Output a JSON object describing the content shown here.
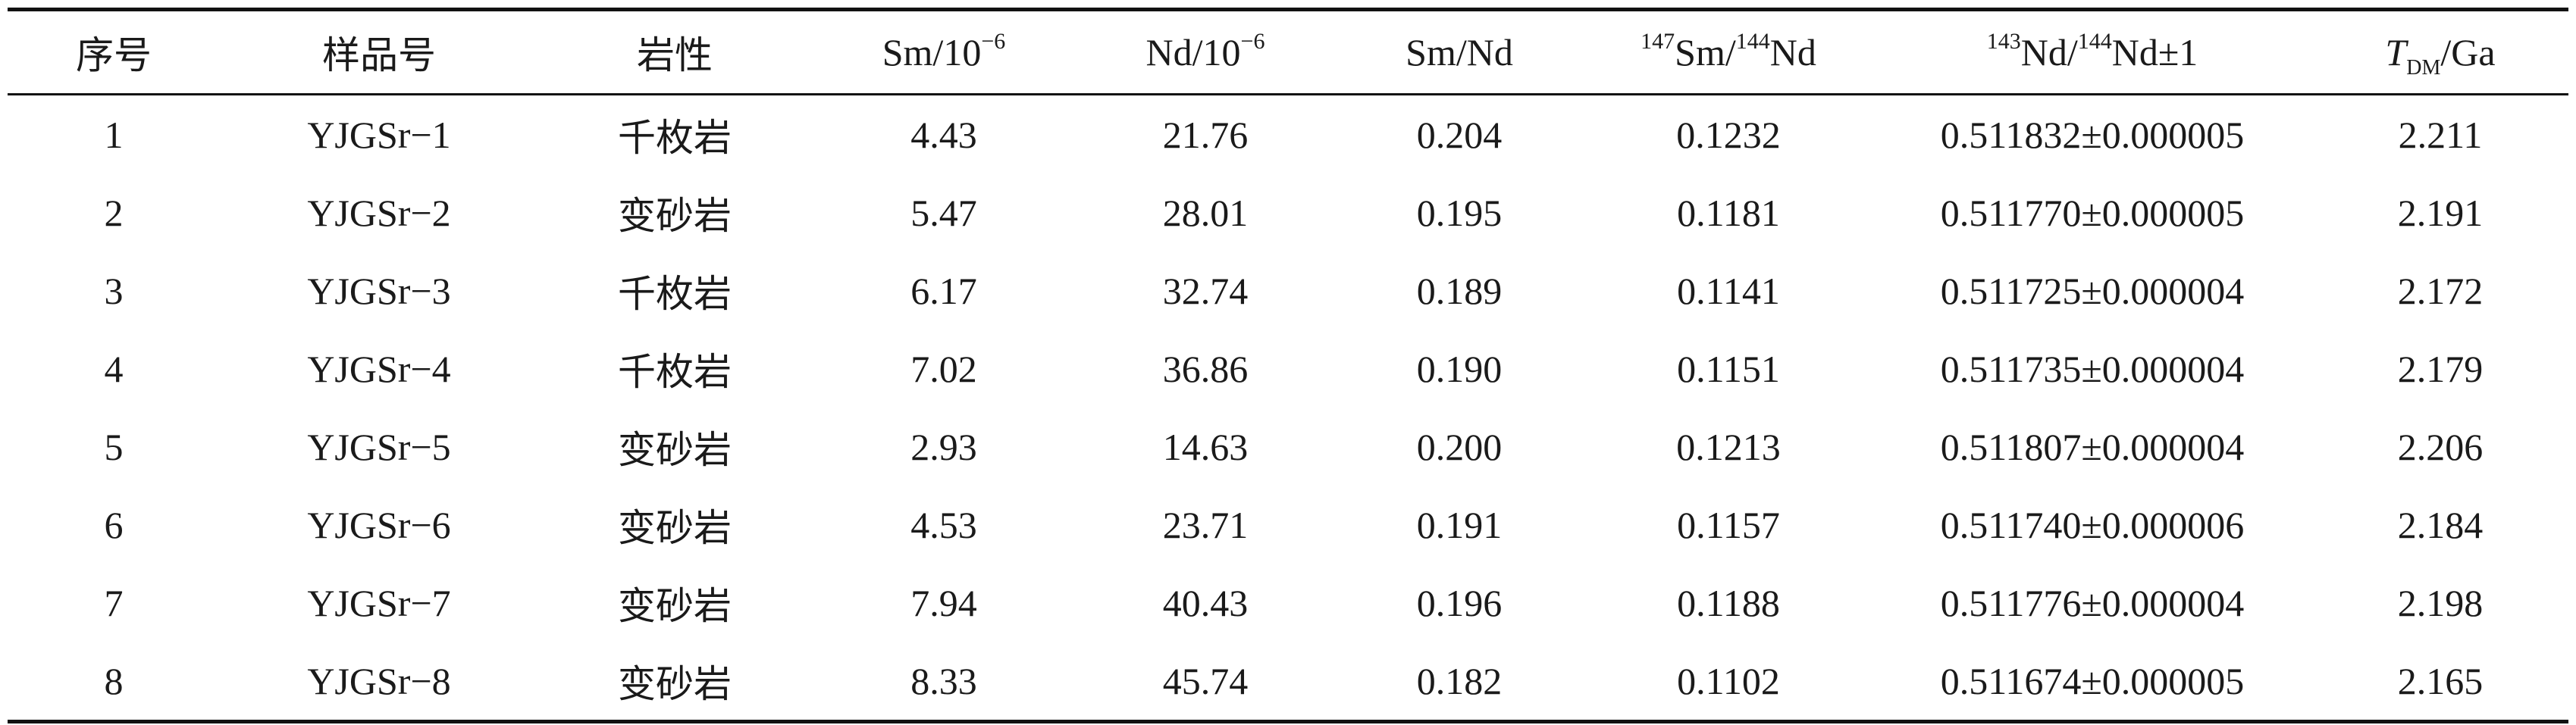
{
  "table": {
    "headers": {
      "index": "序号",
      "sample": "样品号",
      "lithology": "岩性",
      "sm_base": "Sm/10",
      "sm_exp": "−6",
      "nd_base": "Nd/10",
      "nd_exp": "−6",
      "sm_nd": "Sm/Nd",
      "r1_sup1": "147",
      "r1_mid": "Sm/",
      "r1_sup2": "144",
      "r1_end": "Nd",
      "r2_sup1": "143",
      "r2_mid": "Nd/",
      "r2_sup2": "144",
      "r2_end": "Nd±1",
      "tdm_T": "T",
      "tdm_sub": "DM",
      "tdm_unit": "/Ga"
    },
    "rows": [
      {
        "index": "1",
        "sample": "YJGSr−1",
        "lithology": "千枚岩",
        "sm": "4.43",
        "nd": "21.76",
        "sm_nd": "0.204",
        "sm147_nd144": "0.1232",
        "nd143_nd144": "0.511832±0.000005",
        "tdm": "2.211"
      },
      {
        "index": "2",
        "sample": "YJGSr−2",
        "lithology": "变砂岩",
        "sm": "5.47",
        "nd": "28.01",
        "sm_nd": "0.195",
        "sm147_nd144": "0.1181",
        "nd143_nd144": "0.511770±0.000005",
        "tdm": "2.191"
      },
      {
        "index": "3",
        "sample": "YJGSr−3",
        "lithology": "千枚岩",
        "sm": "6.17",
        "nd": "32.74",
        "sm_nd": "0.189",
        "sm147_nd144": "0.1141",
        "nd143_nd144": "0.511725±0.000004",
        "tdm": "2.172"
      },
      {
        "index": "4",
        "sample": "YJGSr−4",
        "lithology": "千枚岩",
        "sm": "7.02",
        "nd": "36.86",
        "sm_nd": "0.190",
        "sm147_nd144": "0.1151",
        "nd143_nd144": "0.511735±0.000004",
        "tdm": "2.179"
      },
      {
        "index": "5",
        "sample": "YJGSr−5",
        "lithology": "变砂岩",
        "sm": "2.93",
        "nd": "14.63",
        "sm_nd": "0.200",
        "sm147_nd144": "0.1213",
        "nd143_nd144": "0.511807±0.000004",
        "tdm": "2.206"
      },
      {
        "index": "6",
        "sample": "YJGSr−6",
        "lithology": "变砂岩",
        "sm": "4.53",
        "nd": "23.71",
        "sm_nd": "0.191",
        "sm147_nd144": "0.1157",
        "nd143_nd144": "0.511740±0.000006",
        "tdm": "2.184"
      },
      {
        "index": "7",
        "sample": "YJGSr−7",
        "lithology": "变砂岩",
        "sm": "7.94",
        "nd": "40.43",
        "sm_nd": "0.196",
        "sm147_nd144": "0.1188",
        "nd143_nd144": "0.511776±0.000004",
        "tdm": "2.198"
      },
      {
        "index": "8",
        "sample": "YJGSr−8",
        "lithology": "变砂岩",
        "sm": "8.33",
        "nd": "45.74",
        "sm_nd": "0.182",
        "sm147_nd144": "0.1102",
        "nd143_nd144": "0.511674±0.000005",
        "tdm": "2.165"
      }
    ]
  }
}
